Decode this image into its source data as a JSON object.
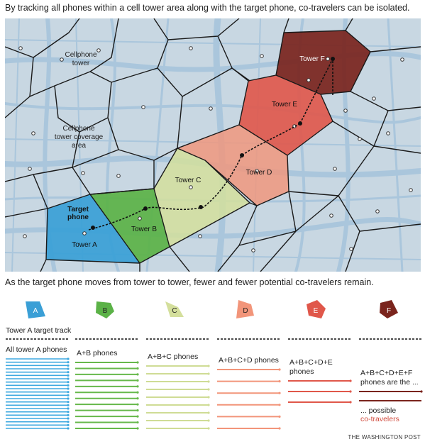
{
  "intro_text": "By tracking all phones within a cell tower area along with the target phone, co-travelers can be isolated.",
  "middle_text": "As the target phone moves from tower to tower, fewer and fewer potential co-travelers remain.",
  "map_labels": {
    "cellphone_tower": [
      "Cellphone",
      "tower"
    ],
    "coverage_area": [
      "Cellphone",
      "tower coverage",
      "area"
    ],
    "target_phone": [
      "Target",
      "phone"
    ],
    "tower_a": "Tower A",
    "tower_b": "Tower B",
    "tower_c": "Tower C",
    "tower_d": "Tower D",
    "tower_e": "Tower E",
    "tower_f": "Tower F"
  },
  "towers": [
    {
      "letter": "A",
      "color": "#3a9fd6",
      "label_color": "#ffffff"
    },
    {
      "letter": "B",
      "color": "#5bb247",
      "label_color": "#222222"
    },
    {
      "letter": "C",
      "color": "#d4df9c",
      "label_color": "#222222"
    },
    {
      "letter": "D",
      "color": "#f2957a",
      "label_color": "#222222"
    },
    {
      "letter": "E",
      "color": "#e0574a",
      "label_color": "#ffffff"
    },
    {
      "letter": "F",
      "color": "#7a241d",
      "label_color": "#ffffff"
    }
  ],
  "target_track_label": "Tower A target track",
  "columns": [
    {
      "label": [
        "All tower A phones"
      ],
      "color": "#3ea9e0"
    },
    {
      "label": [
        "A+B phones"
      ],
      "color": "#66b84a"
    },
    {
      "label": [
        "A+B+C phones"
      ],
      "color": "#cfdc95"
    },
    {
      "label": [
        "A+B+C+D phones"
      ],
      "color": "#f2957a"
    },
    {
      "label": [
        "A+B+C+D+E",
        "phones"
      ],
      "color": "#e0574a"
    },
    {
      "label": [
        "A+B+C+D+E+F",
        "phones are the ..."
      ],
      "color": "#7a241d"
    }
  ],
  "possible_label": "... possible",
  "cotravelers_label": "co-travelers",
  "credit": "THE WASHINGTON POST",
  "colors": {
    "map_bg": "#c8d7e2",
    "road": "#a8c4db",
    "cell_line": "#1a1a1a",
    "cotravelers": "#d04a3c"
  }
}
